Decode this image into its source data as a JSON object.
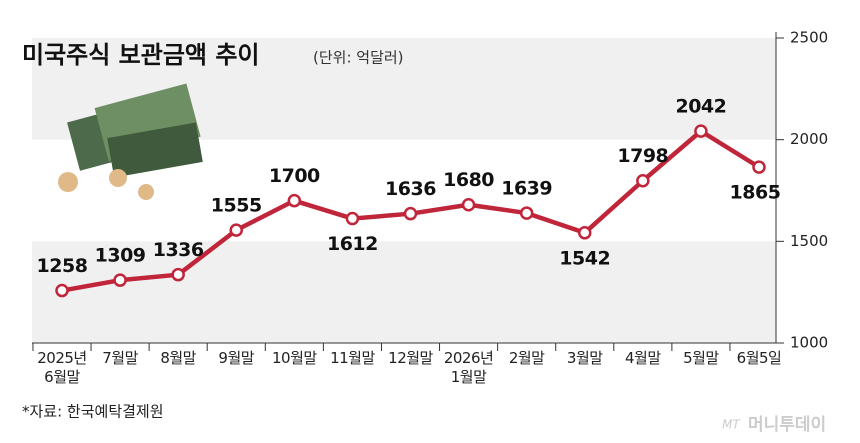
{
  "chart_data": {
    "type": "line",
    "title": "미국주식 보관금액 추이",
    "subtitle": "(단위: 억달러)",
    "categories": [
      "2025년\n6월말",
      "7월말",
      "8월말",
      "9월말",
      "10월말",
      "11월말",
      "12월말",
      "2026년\n1월말",
      "2월말",
      "3월말",
      "4월말",
      "5월말",
      "6월5일"
    ],
    "values": [
      1258,
      1309,
      1336,
      1555,
      1700,
      1612,
      1636,
      1680,
      1639,
      1542,
      1798,
      2042,
      1865
    ],
    "color": "#c1253a",
    "ylim": [
      1000,
      2500
    ],
    "yticks": [
      1000,
      1500,
      2000,
      2500
    ],
    "source": "*자료: 한국예탁결제원",
    "watermark_logo": "MT",
    "watermark": "머니투데이"
  }
}
